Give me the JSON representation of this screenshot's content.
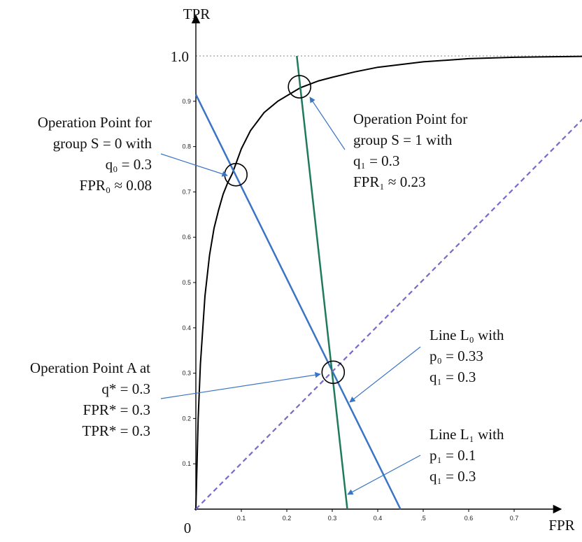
{
  "chart_data": {
    "type": "line",
    "xlabel": "FPR",
    "ylabel": "TPR",
    "origin_label": "0",
    "top_label": "1.0",
    "x_ticks": [
      {
        "value": 0.1,
        "label": "0.1"
      },
      {
        "value": 0.2,
        "label": "0.2"
      },
      {
        "value": 0.3,
        "label": "0.3"
      },
      {
        "value": 0.4,
        "label": "0.4"
      },
      {
        "value": 0.5,
        "label": ".5"
      },
      {
        "value": 0.6,
        "label": "0.6"
      },
      {
        "value": 0.7,
        "label": "0.7"
      }
    ],
    "y_ticks": [
      {
        "value": 0.1,
        "label": "0.1"
      },
      {
        "value": 0.2,
        "label": "0.2"
      },
      {
        "value": 0.3,
        "label": "0.3"
      },
      {
        "value": 0.4,
        "label": "0.4"
      },
      {
        "value": 0.5,
        "label": "0.5"
      },
      {
        "value": 0.6,
        "label": "0.6"
      },
      {
        "value": 0.7,
        "label": "0.7"
      },
      {
        "value": 0.8,
        "label": "0.8"
      },
      {
        "value": 0.9,
        "label": "0.9"
      }
    ],
    "xlim": [
      0,
      0.8
    ],
    "ylim": [
      0,
      1.0
    ],
    "grid": false,
    "series": [
      {
        "kind": "roc-curve",
        "color": "#000000",
        "points": [
          [
            0,
            0
          ],
          [
            0.005,
            0.2
          ],
          [
            0.01,
            0.32
          ],
          [
            0.02,
            0.47
          ],
          [
            0.03,
            0.56
          ],
          [
            0.04,
            0.62
          ],
          [
            0.05,
            0.66
          ],
          [
            0.06,
            0.695
          ],
          [
            0.07,
            0.72
          ],
          [
            0.08,
            0.74
          ],
          [
            0.1,
            0.795
          ],
          [
            0.12,
            0.835
          ],
          [
            0.15,
            0.875
          ],
          [
            0.18,
            0.9
          ],
          [
            0.2,
            0.912
          ],
          [
            0.23,
            0.93
          ],
          [
            0.27,
            0.945
          ],
          [
            0.3,
            0.953
          ],
          [
            0.35,
            0.965
          ],
          [
            0.4,
            0.975
          ],
          [
            0.5,
            0.987
          ],
          [
            0.6,
            0.994
          ],
          [
            0.7,
            0.997
          ],
          [
            0.85,
            0.999
          ]
        ]
      },
      {
        "kind": "line-L0",
        "color": "#3a74c4",
        "points": [
          [
            0,
            0.915
          ],
          [
            0.45,
            0
          ]
        ]
      },
      {
        "kind": "line-L1",
        "color": "#1f7a5c",
        "points": [
          [
            0.222,
            1.0
          ],
          [
            0.333,
            0
          ]
        ]
      },
      {
        "kind": "diagonal",
        "color": "#7b68c8",
        "style": "dashed",
        "points": [
          [
            0,
            0
          ],
          [
            0.85,
            0.86
          ]
        ]
      },
      {
        "kind": "tpr-1-reference",
        "color": "#aaaaaa",
        "style": "dotted",
        "points": [
          [
            0,
            1.0
          ],
          [
            0.85,
            1.0
          ]
        ]
      }
    ],
    "operation_points": [
      {
        "name": "S0",
        "x": 0.088,
        "y": 0.738
      },
      {
        "name": "S1",
        "x": 0.228,
        "y": 0.932
      },
      {
        "name": "A",
        "x": 0.302,
        "y": 0.302
      }
    ],
    "annotations": [
      {
        "id": "s0",
        "lines": [
          "Operation Point for",
          "group S = 0 with",
          "q₀ = 0.3",
          "FPR₀ ≈ 0.08"
        ]
      },
      {
        "id": "s1",
        "lines": [
          "Operation Point for",
          "group S = 1 with",
          "q₁ = 0.3",
          "FPR₁ ≈ 0.23"
        ]
      },
      {
        "id": "a",
        "lines": [
          "Operation Point A at",
          "q* = 0.3",
          "FPR* = 0.3",
          "TPR* = 0.3"
        ]
      },
      {
        "id": "l0",
        "lines": [
          "Line L₀ with",
          "p₀ = 0.33",
          "q₁ = 0.3"
        ]
      },
      {
        "id": "l1",
        "lines": [
          "Line L₁ with",
          "p₁ = 0.1",
          "q₁ = 0.3"
        ]
      }
    ]
  }
}
